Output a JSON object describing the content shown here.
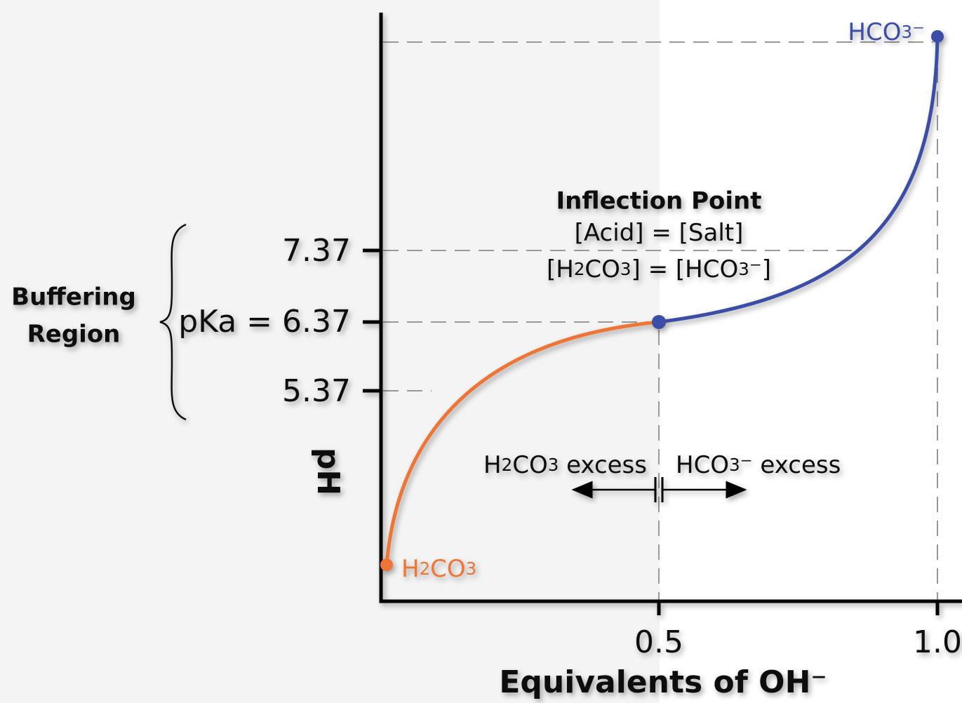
{
  "y_axis": {
    "label": "pH",
    "ticks": [
      "7.37",
      "pKa = 6.37",
      "5.37"
    ]
  },
  "x_axis": {
    "label": "Equivalents of OH⁻",
    "ticks": [
      "0.5",
      "1.0"
    ]
  },
  "buffering_region": {
    "label_line1": "Buffering",
    "label_line2": "Region"
  },
  "inflection_point": {
    "title": "Inflection Point",
    "line1": "[Acid] = [Salt]",
    "line2": "[H2CO3] = [HCO3⁻]"
  },
  "regions": {
    "left": "H2CO3 excess",
    "right": "HCO3⁻ excess"
  },
  "endpoints": {
    "start": "H2CO3",
    "end": "HCO3⁻"
  }
}
